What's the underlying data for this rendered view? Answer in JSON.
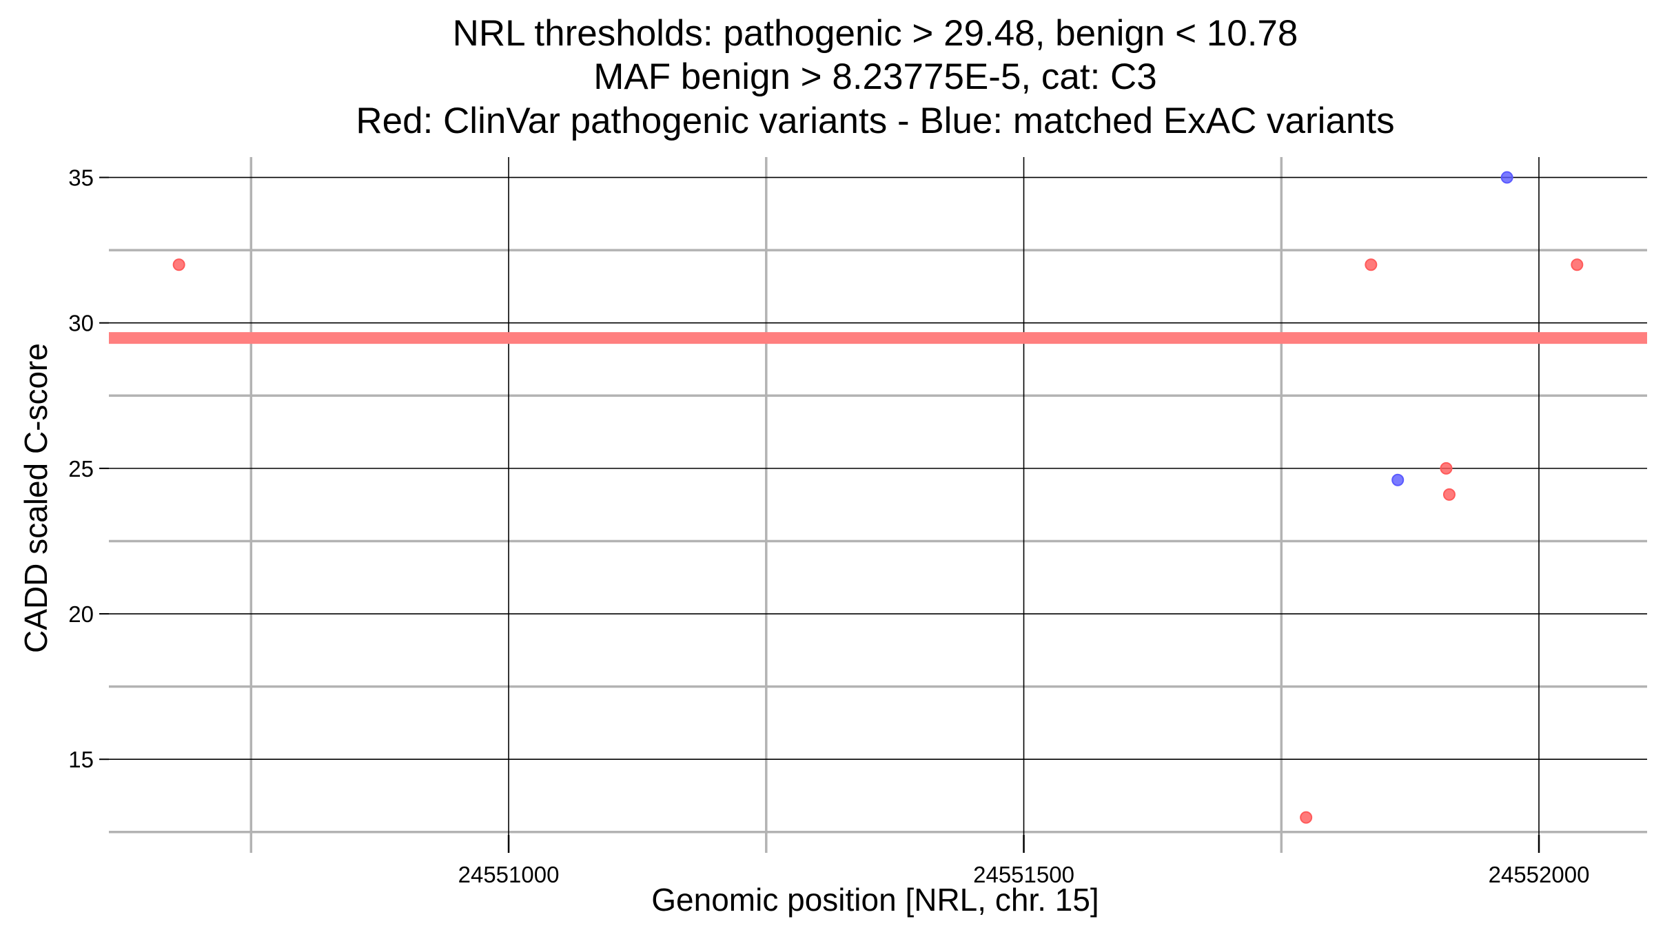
{
  "chart_data": {
    "type": "scatter",
    "title": [
      "NRL thresholds: pathogenic > 29.48, benign < 10.78",
      "MAF benign > 8.23775E-5, cat: C3",
      "Red: ClinVar pathogenic variants - Blue: matched ExAC variants"
    ],
    "xlabel": "Genomic position [NRL, chr. 15]",
    "ylabel": "CADD scaled C-score",
    "xlim": [
      24550612,
      24552105
    ],
    "ylim": [
      12.4,
      35.7
    ],
    "x_major_ticks": [
      24551000,
      24551500,
      24552000
    ],
    "x_minor_ticks": [
      24550750,
      24551250,
      24551750
    ],
    "y_major_ticks": [
      15,
      20,
      25,
      30,
      35
    ],
    "y_minor_ticks": [
      12.5,
      17.5,
      22.5,
      27.5,
      32.5
    ],
    "threshold_line": {
      "y": 29.48,
      "color": "#ff7f7f"
    },
    "grid": true,
    "legend": "none",
    "series": [
      {
        "color": "#ff5a5a",
        "points": [
          {
            "x": 24550680,
            "y": 32
          },
          {
            "x": 24551837,
            "y": 32
          },
          {
            "x": 24552037,
            "y": 32
          },
          {
            "x": 24551910,
            "y": 25
          },
          {
            "x": 24551913,
            "y": 24.1
          },
          {
            "x": 24551774,
            "y": 13
          }
        ]
      },
      {
        "color": "#5a5aff",
        "points": [
          {
            "x": 24551969,
            "y": 35
          },
          {
            "x": 24551863,
            "y": 24.6
          }
        ]
      }
    ]
  }
}
